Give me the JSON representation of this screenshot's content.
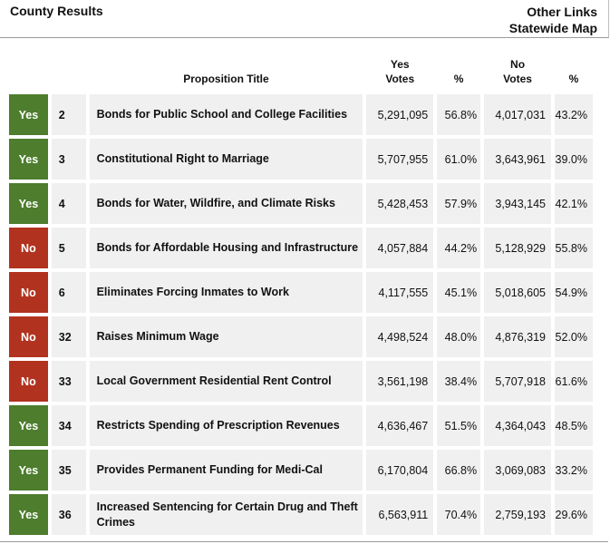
{
  "header": {
    "title": "County Results",
    "other_links": "Other Links",
    "statewide_map": "Statewide Map"
  },
  "columns": {
    "proposition_title": "Proposition Title",
    "yes_votes": "Yes Votes",
    "yes_pct": "%",
    "no_votes": "No Votes",
    "no_pct": "%"
  },
  "colors": {
    "yes": "#4d7d2d",
    "no": "#b1321f",
    "row_bg": "#f0f0f0"
  },
  "rows": [
    {
      "result": "Yes",
      "num": "2",
      "title": "Bonds for Public School and College Facilities",
      "yes_votes": "5,291,095",
      "yes_pct": "56.8%",
      "no_votes": "4,017,031",
      "no_pct": "43.2%"
    },
    {
      "result": "Yes",
      "num": "3",
      "title": "Constitutional Right to Marriage",
      "yes_votes": "5,707,955",
      "yes_pct": "61.0%",
      "no_votes": "3,643,961",
      "no_pct": "39.0%"
    },
    {
      "result": "Yes",
      "num": "4",
      "title": "Bonds for Water, Wildfire, and Climate Risks",
      "yes_votes": "5,428,453",
      "yes_pct": "57.9%",
      "no_votes": "3,943,145",
      "no_pct": "42.1%"
    },
    {
      "result": "No",
      "num": "5",
      "title": "Bonds for Affordable Housing and Infrastructure",
      "yes_votes": "4,057,884",
      "yes_pct": "44.2%",
      "no_votes": "5,128,929",
      "no_pct": "55.8%"
    },
    {
      "result": "No",
      "num": "6",
      "title": "Eliminates Forcing Inmates to Work",
      "yes_votes": "4,117,555",
      "yes_pct": "45.1%",
      "no_votes": "5,018,605",
      "no_pct": "54.9%"
    },
    {
      "result": "No",
      "num": "32",
      "title": "Raises Minimum Wage",
      "yes_votes": "4,498,524",
      "yes_pct": "48.0%",
      "no_votes": "4,876,319",
      "no_pct": "52.0%"
    },
    {
      "result": "No",
      "num": "33",
      "title": "Local Government Residential Rent Control",
      "yes_votes": "3,561,198",
      "yes_pct": "38.4%",
      "no_votes": "5,707,918",
      "no_pct": "61.6%"
    },
    {
      "result": "Yes",
      "num": "34",
      "title": "Restricts Spending of Prescription Revenues",
      "yes_votes": "4,636,467",
      "yes_pct": "51.5%",
      "no_votes": "4,364,043",
      "no_pct": "48.5%"
    },
    {
      "result": "Yes",
      "num": "35",
      "title": "Provides Permanent Funding for Medi-Cal",
      "yes_votes": "6,170,804",
      "yes_pct": "66.8%",
      "no_votes": "3,069,083",
      "no_pct": "33.2%"
    },
    {
      "result": "Yes",
      "num": "36",
      "title": "Increased Sentencing for Certain Drug and Theft Crimes",
      "yes_votes": "6,563,911",
      "yes_pct": "70.4%",
      "no_votes": "2,759,193",
      "no_pct": "29.6%"
    }
  ]
}
